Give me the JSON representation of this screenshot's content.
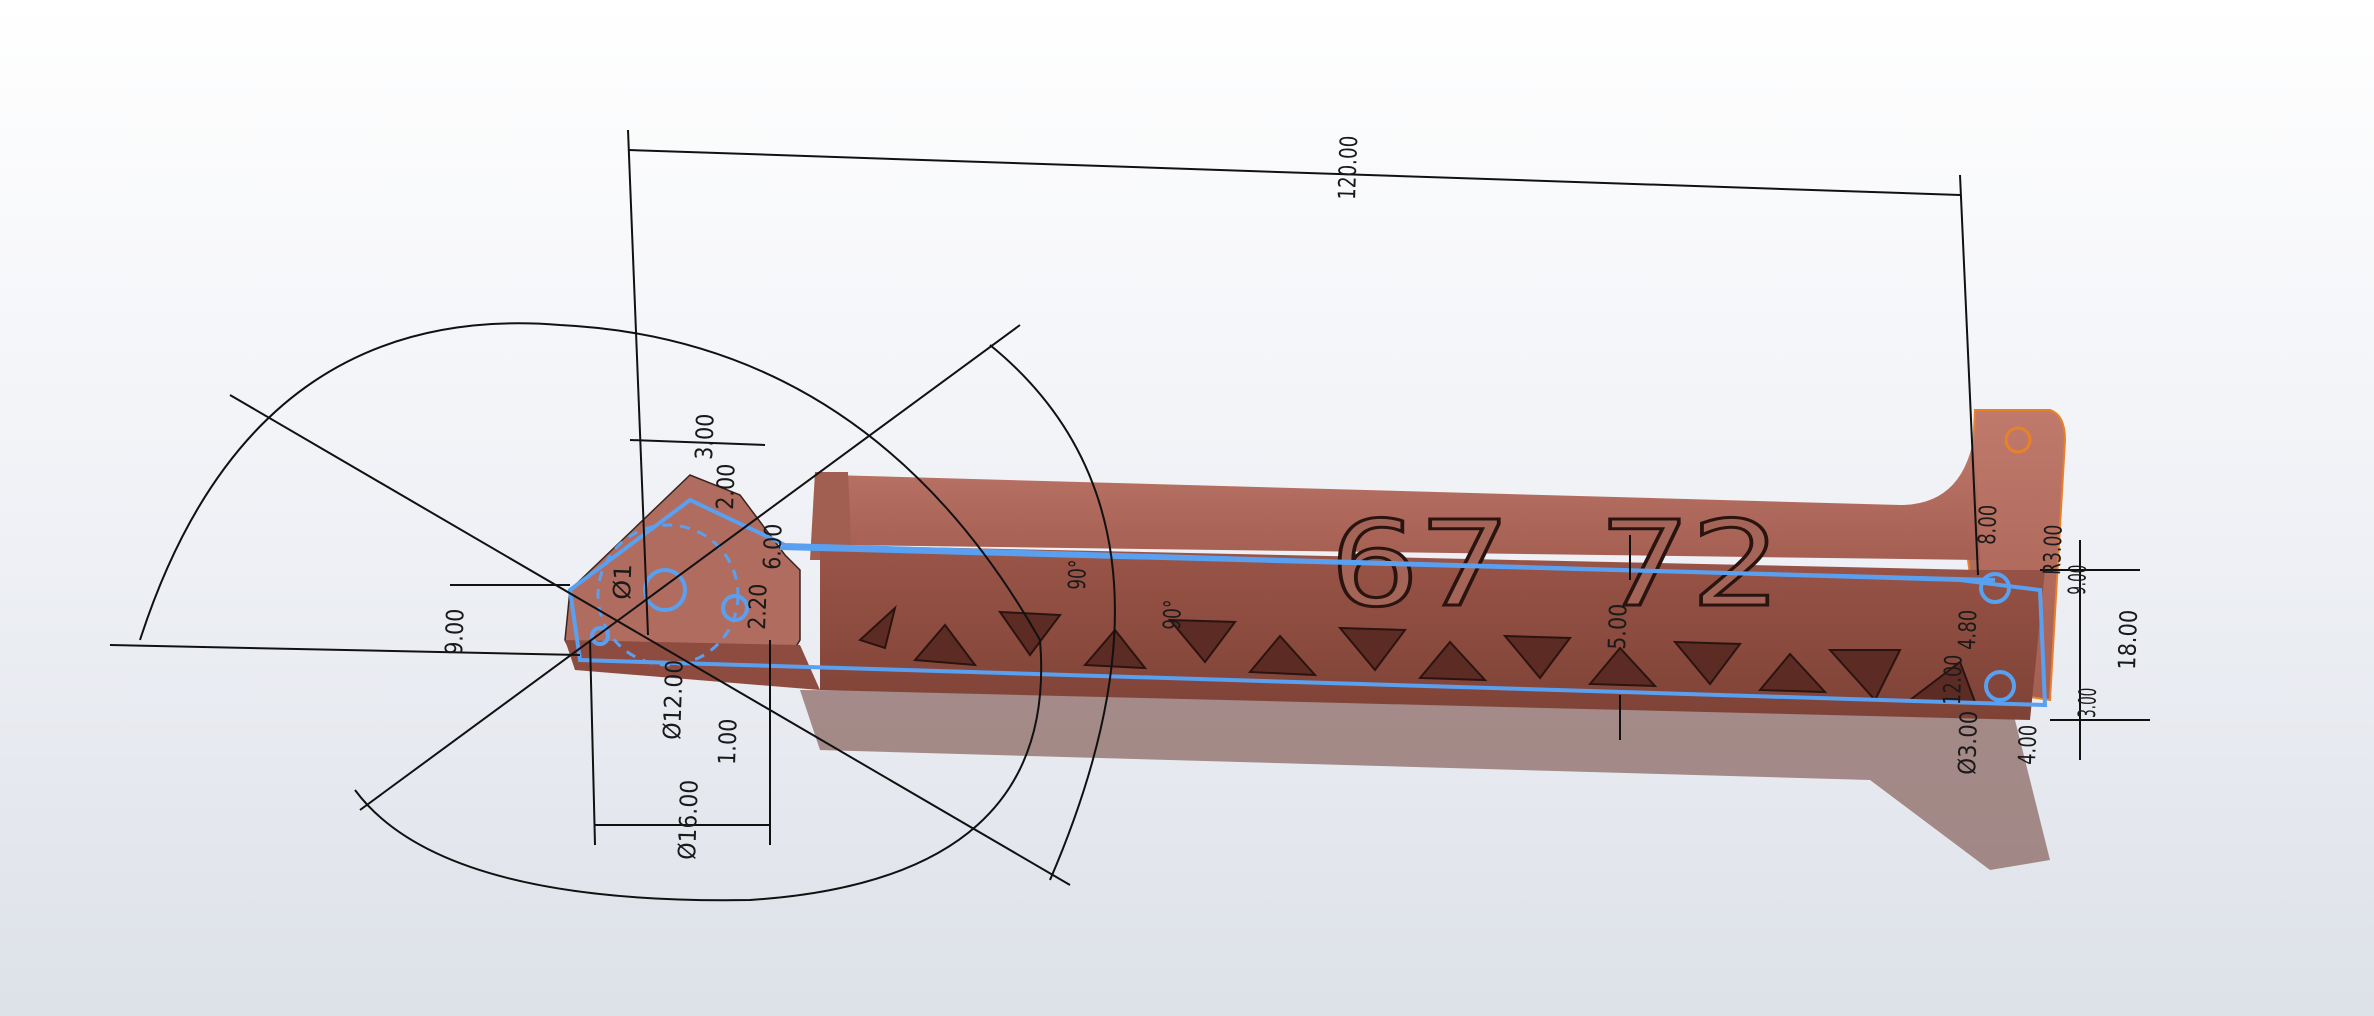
{
  "part": {
    "embossed_number": "67 72",
    "body_color": "#b26e61",
    "sketch_color": "#5aa0f0",
    "tab_highlight_color": "#e8822a"
  },
  "dimensions": {
    "overall_length": "120.00",
    "top_offset": "3.00",
    "chamfer": "2.00",
    "slot_width": "6.00",
    "small_hole": "2.20",
    "left_height": "9.00",
    "left_hole_dia": "Ø1",
    "bore_dia": "Ø12.00",
    "boss_dia": "Ø16.00",
    "radius_small": "1.00",
    "angle_a": "90°",
    "angle_b": "90°",
    "mid_depth": "5.00",
    "right_top": "8.00",
    "right_r": "R3.00",
    "right_dim_a": "9.00",
    "right_width": "18.00",
    "right_dim_b": "4.80",
    "right_dim_c": "12.00",
    "right_hole_dia": "Ø3.00",
    "right_offset": "4.00",
    "right_small": "3.00"
  }
}
